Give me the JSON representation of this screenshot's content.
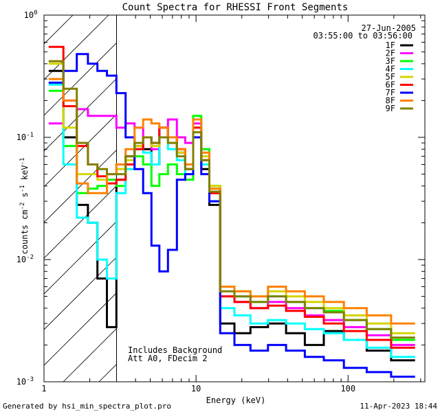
{
  "chart_data": {
    "type": "line",
    "title": "Count Spectra for RHESSI Front Segments",
    "xlabel": "Energy (keV)",
    "ylabel": {
      "base": "counts cm",
      "exp1": "-2",
      "mid1": " s",
      "exp2": "-1",
      "mid2": " keV",
      "exp3": "-1"
    },
    "xscale": "log",
    "yscale": "log",
    "xlim": [
      1.0,
      320.0
    ],
    "ylim": [
      0.001,
      1.0
    ],
    "x_ticks": [
      {
        "value": 1,
        "label": "1"
      },
      {
        "value": 10,
        "label": "10"
      },
      {
        "value": 100,
        "label": "100"
      }
    ],
    "y_ticks": [
      {
        "value": 1.0,
        "base": "10",
        "exp": "0"
      },
      {
        "value": 0.1,
        "base": "10",
        "exp": "-1"
      },
      {
        "value": 0.01,
        "base": "10",
        "exp": "-2"
      },
      {
        "value": 0.001,
        "base": "10",
        "exp": "-3"
      }
    ],
    "shaded_region": {
      "x_from": 1.0,
      "x_to": 3.0,
      "style": "diagonal hatch"
    },
    "annotations": {
      "date": "27-Jun-2005",
      "time_range": "03:55:00 to 03:56:00",
      "note1": "Includes Background",
      "note2": "Att A0, FDecim 2"
    },
    "legend_position": "top-right",
    "series": [
      {
        "name": "1F",
        "color": "#000000",
        "values": [
          0.35,
          0.1,
          0.028,
          0.02,
          0.007,
          0.0028,
          0.045,
          0.07,
          0.085,
          0.08,
          0.06,
          0.12,
          0.1,
          0.075,
          0.055,
          0.1,
          0.055,
          0.028,
          0.003,
          0.0025,
          0.0028,
          0.003,
          0.0025,
          0.002,
          0.0026,
          0.0022,
          0.0018,
          0.0015
        ]
      },
      {
        "name": "2F",
        "color": "#ff00ff",
        "values": [
          0.13,
          0.2,
          0.17,
          0.15,
          0.15,
          0.15,
          0.12,
          0.13,
          0.12,
          0.1,
          0.08,
          0.12,
          0.14,
          0.1,
          0.09,
          0.13,
          0.08,
          0.035,
          0.005,
          0.0045,
          0.004,
          0.0045,
          0.004,
          0.0035,
          0.0032,
          0.0028,
          0.0024,
          0.002
        ]
      },
      {
        "name": "3F",
        "color": "#00ff00",
        "values": [
          0.24,
          0.085,
          0.035,
          0.038,
          0.04,
          0.045,
          0.04,
          0.06,
          0.07,
          0.06,
          0.04,
          0.05,
          0.06,
          0.05,
          0.045,
          0.15,
          0.08,
          0.04,
          0.006,
          0.005,
          0.0045,
          0.005,
          0.0045,
          0.004,
          0.0038,
          0.0032,
          0.0027,
          0.0022
        ]
      },
      {
        "name": "4F",
        "color": "#00ffff",
        "values": [
          0.27,
          0.06,
          0.022,
          0.02,
          0.01,
          0.007,
          0.035,
          0.055,
          0.08,
          0.075,
          0.06,
          0.1,
          0.08,
          0.065,
          0.05,
          0.12,
          0.06,
          0.03,
          0.004,
          0.0035,
          0.003,
          0.0032,
          0.003,
          0.0027,
          0.0025,
          0.0022,
          0.0019,
          0.0016
        ]
      },
      {
        "name": "5F",
        "color": "#d4d400",
        "values": [
          0.4,
          0.12,
          0.05,
          0.05,
          0.045,
          0.05,
          0.055,
          0.065,
          0.085,
          0.1,
          0.085,
          0.1,
          0.09,
          0.075,
          0.06,
          0.12,
          0.07,
          0.04,
          0.006,
          0.0055,
          0.005,
          0.0055,
          0.005,
          0.0045,
          0.004,
          0.0035,
          0.003,
          0.0025
        ]
      },
      {
        "name": "6F",
        "color": "#ff0000",
        "values": [
          0.55,
          0.18,
          0.085,
          0.06,
          0.048,
          0.042,
          0.045,
          0.06,
          0.08,
          0.1,
          0.09,
          0.12,
          0.1,
          0.08,
          0.06,
          0.12,
          0.065,
          0.035,
          0.005,
          0.0045,
          0.004,
          0.0042,
          0.0038,
          0.0034,
          0.003,
          0.0026,
          0.0022,
          0.0019
        ]
      },
      {
        "name": "7F",
        "color": "#0000ff",
        "values": [
          0.28,
          0.35,
          0.48,
          0.4,
          0.35,
          0.32,
          0.23,
          0.1,
          0.055,
          0.035,
          0.013,
          0.008,
          0.012,
          0.045,
          0.05,
          0.1,
          0.05,
          0.03,
          0.0025,
          0.002,
          0.0018,
          0.002,
          0.0018,
          0.0016,
          0.0015,
          0.0013,
          0.0012,
          0.0011
        ]
      },
      {
        "name": "8F",
        "color": "#ff8000",
        "values": [
          0.3,
          0.2,
          0.042,
          0.035,
          0.035,
          0.05,
          0.06,
          0.08,
          0.12,
          0.14,
          0.13,
          0.12,
          0.1,
          0.08,
          0.06,
          0.14,
          0.075,
          0.038,
          0.006,
          0.0055,
          0.005,
          0.006,
          0.0055,
          0.005,
          0.0045,
          0.004,
          0.0035,
          0.003
        ]
      },
      {
        "name": "9F",
        "color": "#808000",
        "values": [
          0.42,
          0.25,
          0.09,
          0.06,
          0.055,
          0.05,
          0.05,
          0.07,
          0.09,
          0.1,
          0.09,
          0.1,
          0.09,
          0.07,
          0.055,
          0.11,
          0.065,
          0.036,
          0.0055,
          0.005,
          0.0045,
          0.005,
          0.0045,
          0.004,
          0.0037,
          0.0032,
          0.0027,
          0.0023
        ]
      }
    ],
    "x_bins": [
      1.2,
      1.5,
      1.8,
      2.1,
      2.4,
      2.8,
      3.2,
      3.7,
      4.2,
      4.8,
      5.4,
      6.1,
      7.0,
      8.0,
      9.0,
      10.2,
      11.5,
      13.0,
      16.0,
      20.0,
      26.0,
      34.0,
      45.0,
      60.0,
      80.0,
      110.0,
      160.0,
      230.0
    ]
  },
  "footer": {
    "generated": "Generated by hsi_min_spectra_plot.pro",
    "timestamp": "11-Apr-2023 18:44"
  }
}
